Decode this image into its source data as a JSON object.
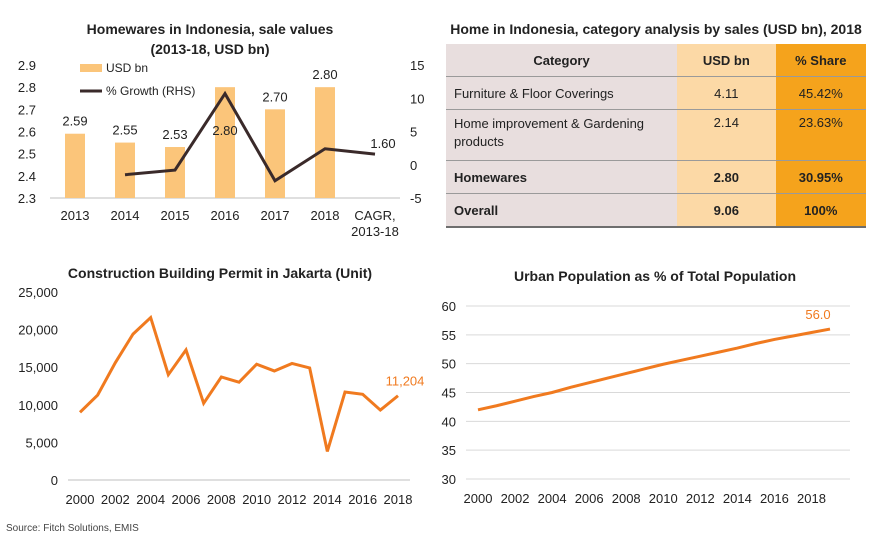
{
  "chart_data": [
    {
      "type": "bar",
      "title": "Homewares in Indonesia, sale values\n(2013-18, USD bn)",
      "categories": [
        "2013",
        "2014",
        "2015",
        "2016",
        "2017",
        "2018",
        "CAGR,\n2013-18"
      ],
      "series": [
        {
          "name": "USD bn",
          "type": "bar",
          "axis": "left",
          "values": [
            2.59,
            2.55,
            2.53,
            2.8,
            2.7,
            2.8,
            null
          ],
          "labels": [
            "2.59",
            "2.55",
            "2.53",
            "2.80",
            "2.70",
            "2.80",
            null
          ]
        },
        {
          "name": "% Growth (RHS)",
          "type": "line",
          "axis": "right",
          "values": [
            null,
            -1.5,
            -0.8,
            10.7,
            -2.4,
            2.4,
            1.6
          ],
          "labels": [
            null,
            null,
            null,
            null,
            null,
            null,
            "1.60"
          ]
        }
      ],
      "ylim": [
        2.3,
        2.9
      ],
      "yticks": [
        "2.3",
        "2.4",
        "2.5",
        "2.6",
        "2.7",
        "2.8",
        "2.9"
      ],
      "y2lim": [
        -5,
        15
      ],
      "y2ticks": [
        "-5",
        "0",
        "5",
        "10",
        "15"
      ],
      "legend": "top-left",
      "colors": {
        "bar": "#fbc57a",
        "line": "#3a2a2a"
      }
    },
    {
      "type": "table",
      "title": "Home in Indonesia, category analysis by sales (USD bn), 2018",
      "columns": [
        "Category",
        "USD bn",
        "% Share"
      ],
      "rows": [
        [
          "Furniture & Floor Coverings",
          "4.11",
          "45.42%"
        ],
        [
          "Home improvement & Gardening products",
          "2.14",
          "23.63%"
        ],
        [
          "Homewares",
          "2.80",
          "30.95%"
        ],
        [
          "Overall",
          "9.06",
          "100%"
        ]
      ],
      "colors": {
        "category": "#e8dede",
        "usd": "#fcd9a6",
        "share": "#f5a31c"
      }
    },
    {
      "type": "line",
      "title": "Construction Building Permit in Jakarta (Unit)",
      "x": [
        2000,
        2001,
        2002,
        2003,
        2004,
        2005,
        2006,
        2007,
        2008,
        2009,
        2010,
        2011,
        2012,
        2013,
        2014,
        2015,
        2016,
        2017,
        2018
      ],
      "series": [
        {
          "values": [
            9000,
            11300,
            15600,
            19400,
            21600,
            14000,
            17300,
            10200,
            13700,
            13000,
            15400,
            14500,
            15500,
            14900,
            3800,
            11700,
            11400,
            9300,
            11204
          ]
        }
      ],
      "end_label": "11,204",
      "ylim": [
        0,
        25000
      ],
      "yticks": [
        "0",
        "5,000",
        "10,000",
        "15,000",
        "20,000",
        "25,000"
      ],
      "xticks": [
        "2000",
        "2002",
        "2004",
        "2006",
        "2008",
        "2010",
        "2012",
        "2014",
        "2016",
        "2018"
      ],
      "colors": {
        "line": "#f07a1f",
        "label": "#f07a1f"
      }
    },
    {
      "type": "line",
      "title": "Urban Population as % of Total Population",
      "x": [
        2000,
        2001,
        2002,
        2003,
        2004,
        2005,
        2006,
        2007,
        2008,
        2009,
        2010,
        2011,
        2012,
        2013,
        2014,
        2015,
        2016,
        2017,
        2018,
        2019
      ],
      "series": [
        {
          "values": [
            42.0,
            42.7,
            43.5,
            44.3,
            45.0,
            45.9,
            46.7,
            47.5,
            48.3,
            49.1,
            49.9,
            50.6,
            51.3,
            52.0,
            52.7,
            53.5,
            54.2,
            54.8,
            55.4,
            56.0
          ]
        }
      ],
      "end_label": "56.0",
      "ylim": [
        30,
        60
      ],
      "yticks": [
        "30",
        "35",
        "40",
        "45",
        "50",
        "55",
        "60"
      ],
      "xticks": [
        "2000",
        "2002",
        "2004",
        "2006",
        "2008",
        "2010",
        "2012",
        "2014",
        "2016",
        "2018"
      ],
      "grid": true,
      "colors": {
        "line": "#f07a1f",
        "label": "#f07a1f",
        "grid": "#d9d9d9"
      }
    }
  ],
  "source": "Source: Fitch Solutions, EMIS"
}
